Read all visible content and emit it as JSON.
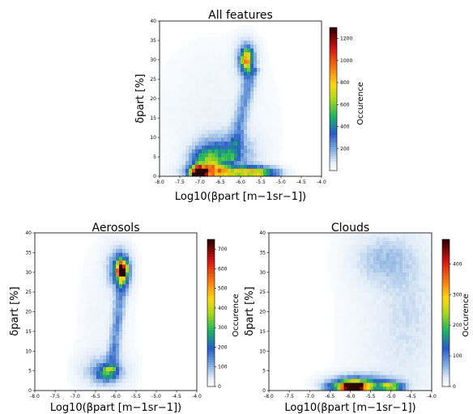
{
  "chart_data": [
    {
      "type": "heatmap",
      "title": "All features",
      "xlabel": "Log10(βpart [m−1sr−1])",
      "ylabel": "δpart [%]",
      "xlim": [
        -8.0,
        -4.0
      ],
      "ylim": [
        0,
        40
      ],
      "xticks": [
        "-8.0",
        "-7.5",
        "-7.0",
        "-6.5",
        "-6.0",
        "-5.5",
        "-5.0",
        "-4.5",
        "-4.0"
      ],
      "yticks": [
        "0",
        "5",
        "10",
        "15",
        "20",
        "25",
        "30",
        "35",
        "40"
      ],
      "colorbar_label": "Occurence",
      "colorbar_range": [
        0,
        1300
      ],
      "colorbar_ticks": [
        "200",
        "400",
        "600",
        "800",
        "1000",
        "1200"
      ],
      "clusters": [
        {
          "x": -7.05,
          "y": 1.0,
          "peak": 1300
        },
        {
          "x": -6.75,
          "y": 3.0,
          "peak": 600
        },
        {
          "x": -5.85,
          "y": 30.0,
          "peak": 700
        },
        {
          "x": -5.5,
          "y": 1.0,
          "peak": 500
        }
      ]
    },
    {
      "type": "heatmap",
      "title": "Aerosols",
      "xlabel": "Log10(βpart [m−1sr−1])",
      "ylabel": "δpart [%]",
      "xlim": [
        -8.0,
        -4.0
      ],
      "ylim": [
        0,
        40
      ],
      "xticks": [
        "-8.0",
        "-7.5",
        "-7.0",
        "-6.5",
        "-6.0",
        "-5.5",
        "-5.0",
        "-4.5",
        "-4.0"
      ],
      "yticks": [
        "0",
        "5",
        "10",
        "15",
        "20",
        "25",
        "30",
        "35",
        "40"
      ],
      "colorbar_label": "Occurence",
      "colorbar_range": [
        0,
        750
      ],
      "colorbar_ticks": [
        "0",
        "100",
        "200",
        "300",
        "400",
        "500",
        "600",
        "700"
      ],
      "clusters": [
        {
          "x": -5.85,
          "y": 30.5,
          "peak": 750
        },
        {
          "x": -6.2,
          "y": 4.5,
          "peak": 230
        }
      ]
    },
    {
      "type": "heatmap",
      "title": "Clouds",
      "xlabel": "Log10(βpart [m−1sr−1])",
      "ylabel": "δpart [%]",
      "xlim": [
        -8.0,
        -4.0
      ],
      "ylim": [
        0,
        40
      ],
      "xticks": [
        "-8.0",
        "-7.5",
        "-7.0",
        "-6.5",
        "-6.0",
        "-5.5",
        "-5.0",
        "-4.5",
        "-4.0"
      ],
      "yticks": [
        "0",
        "5",
        "10",
        "15",
        "20",
        "25",
        "30",
        "35",
        "40"
      ],
      "colorbar_label": "Occurence",
      "colorbar_range": [
        0,
        480
      ],
      "colorbar_ticks": [
        "0",
        "100",
        "200",
        "300",
        "400"
      ],
      "clusters": [
        {
          "x": -5.9,
          "y": 1.0,
          "peak": 480
        },
        {
          "x": -5.0,
          "y": 1.0,
          "peak": 250
        },
        {
          "x": -5.2,
          "y": 33.0,
          "peak": 60
        }
      ]
    }
  ]
}
